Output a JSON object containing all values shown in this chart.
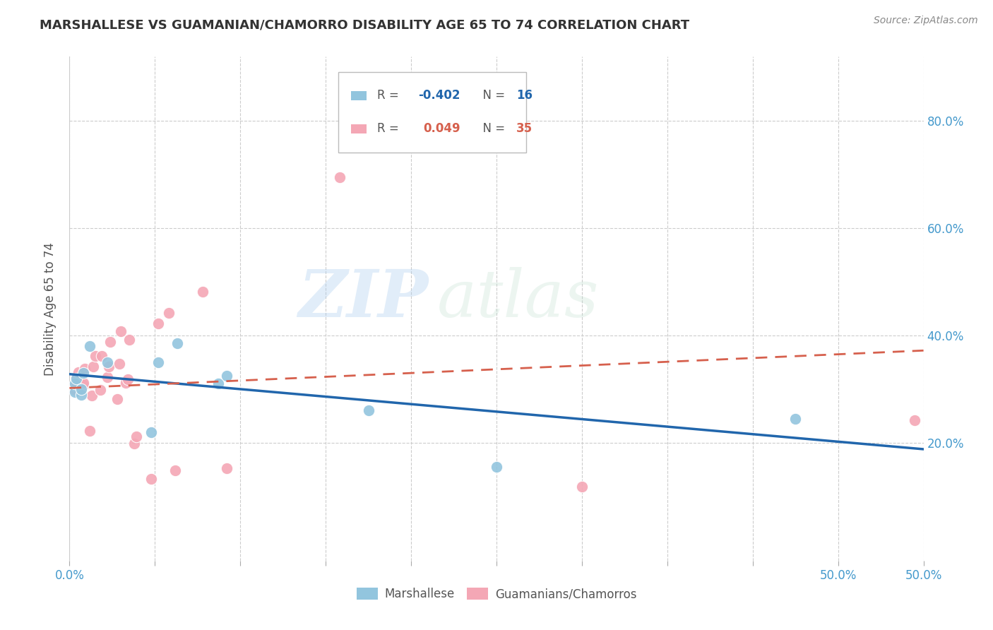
{
  "title": "MARSHALLESE VS GUAMANIAN/CHAMORRO DISABILITY AGE 65 TO 74 CORRELATION CHART",
  "source": "Source: ZipAtlas.com",
  "ylabel": "Disability Age 65 to 74",
  "xlim": [
    0.0,
    0.5
  ],
  "ylim": [
    -0.02,
    0.92
  ],
  "xticks": [
    0.0,
    0.05,
    0.1,
    0.15,
    0.2,
    0.25,
    0.3,
    0.35,
    0.4,
    0.45,
    0.5
  ],
  "xlabels_show": {
    "0.0": "0.0%",
    "0.5": "50.0%"
  },
  "yticks": [
    0.0,
    0.2,
    0.4,
    0.6,
    0.8
  ],
  "ytick_labels_right": [
    "",
    "20.0%",
    "40.0%",
    "60.0%",
    "80.0%"
  ],
  "blue_color": "#92C5DE",
  "pink_color": "#F4A7B5",
  "blue_line_color": "#2166AC",
  "pink_line_color": "#D6604D",
  "watermark_zip": "ZIP",
  "watermark_atlas": "atlas",
  "blue_x": [
    0.003,
    0.003,
    0.004,
    0.007,
    0.007,
    0.008,
    0.012,
    0.022,
    0.048,
    0.052,
    0.063,
    0.087,
    0.092,
    0.175,
    0.25,
    0.425
  ],
  "blue_y": [
    0.295,
    0.31,
    0.32,
    0.29,
    0.3,
    0.33,
    0.38,
    0.35,
    0.22,
    0.35,
    0.385,
    0.31,
    0.325,
    0.26,
    0.155,
    0.245
  ],
  "pink_x": [
    0.003,
    0.003,
    0.004,
    0.004,
    0.005,
    0.007,
    0.008,
    0.008,
    0.009,
    0.012,
    0.013,
    0.014,
    0.015,
    0.018,
    0.019,
    0.022,
    0.023,
    0.024,
    0.028,
    0.029,
    0.03,
    0.033,
    0.034,
    0.035,
    0.038,
    0.039,
    0.048,
    0.052,
    0.058,
    0.062,
    0.078,
    0.092,
    0.158,
    0.3,
    0.495
  ],
  "pink_y": [
    0.298,
    0.308,
    0.312,
    0.322,
    0.332,
    0.298,
    0.308,
    0.312,
    0.338,
    0.222,
    0.288,
    0.342,
    0.362,
    0.298,
    0.362,
    0.322,
    0.342,
    0.388,
    0.282,
    0.348,
    0.408,
    0.312,
    0.318,
    0.392,
    0.198,
    0.212,
    0.132,
    0.422,
    0.442,
    0.148,
    0.482,
    0.152,
    0.695,
    0.118,
    0.242
  ],
  "blue_trendline_x": [
    0.0,
    0.5
  ],
  "blue_trendline_y": [
    0.328,
    0.188
  ],
  "pink_trendline_x": [
    0.0,
    0.5
  ],
  "pink_trendline_y": [
    0.302,
    0.372
  ],
  "legend_r1_label": "R = ",
  "legend_r1_val": "-0.402",
  "legend_n1_label": "N = ",
  "legend_n1_val": "16",
  "legend_r2_label": "R =  ",
  "legend_r2_val": "0.049",
  "legend_n2_label": "N = ",
  "legend_n2_val": "35"
}
